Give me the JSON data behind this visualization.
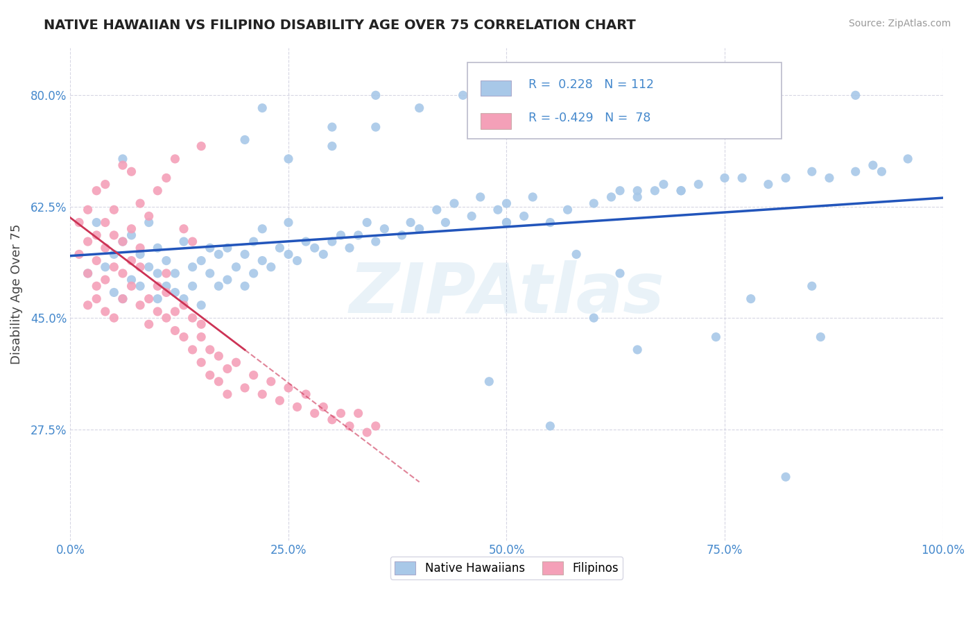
{
  "title": "NATIVE HAWAIIAN VS FILIPINO DISABILITY AGE OVER 75 CORRELATION CHART",
  "source": "Source: ZipAtlas.com",
  "ylabel": "Disability Age Over 75",
  "xlim": [
    0.0,
    1.0
  ],
  "ylim": [
    0.1,
    0.875
  ],
  "yticks": [
    0.275,
    0.45,
    0.625,
    0.8
  ],
  "ytick_labels": [
    "27.5%",
    "45.0%",
    "62.5%",
    "80.0%"
  ],
  "xticks": [
    0.0,
    0.25,
    0.5,
    0.75,
    1.0
  ],
  "xtick_labels": [
    "0.0%",
    "25.0%",
    "50.0%",
    "75.0%",
    "100.0%"
  ],
  "native_hawaiian_color": "#a8c8e8",
  "filipino_color": "#f4a0b8",
  "trend_nh_color": "#2255bb",
  "trend_fil_color": "#cc3355",
  "r_nh": 0.228,
  "n_nh": 112,
  "r_fil": -0.429,
  "n_fil": 78,
  "title_color": "#222222",
  "axis_color": "#4488cc",
  "watermark": "ZIPAtlas",
  "background_color": "#ffffff",
  "grid_color": "#ccccdd",
  "native_hawaiian_x": [
    0.02,
    0.04,
    0.05,
    0.05,
    0.06,
    0.06,
    0.07,
    0.07,
    0.08,
    0.08,
    0.09,
    0.09,
    0.1,
    0.1,
    0.1,
    0.11,
    0.11,
    0.12,
    0.12,
    0.13,
    0.13,
    0.14,
    0.14,
    0.15,
    0.15,
    0.16,
    0.16,
    0.17,
    0.17,
    0.18,
    0.18,
    0.19,
    0.2,
    0.2,
    0.21,
    0.21,
    0.22,
    0.22,
    0.23,
    0.24,
    0.25,
    0.25,
    0.26,
    0.27,
    0.28,
    0.29,
    0.3,
    0.31,
    0.32,
    0.33,
    0.34,
    0.35,
    0.36,
    0.38,
    0.39,
    0.4,
    0.42,
    0.43,
    0.44,
    0.46,
    0.47,
    0.49,
    0.5,
    0.5,
    0.52,
    0.53,
    0.55,
    0.57,
    0.6,
    0.62,
    0.63,
    0.65,
    0.67,
    0.68,
    0.7,
    0.72,
    0.75,
    0.77,
    0.8,
    0.82,
    0.85,
    0.87,
    0.9,
    0.92,
    0.3,
    0.35,
    0.4,
    0.45,
    0.48,
    0.55,
    0.58,
    0.6,
    0.63,
    0.65,
    0.7,
    0.74,
    0.78,
    0.82,
    0.86,
    0.9,
    0.93,
    0.96,
    0.5,
    0.65,
    0.75,
    0.85,
    0.2,
    0.22,
    0.25,
    0.3,
    0.35,
    0.03,
    0.06
  ],
  "native_hawaiian_y": [
    0.52,
    0.53,
    0.55,
    0.49,
    0.48,
    0.57,
    0.51,
    0.58,
    0.5,
    0.55,
    0.53,
    0.6,
    0.48,
    0.52,
    0.56,
    0.5,
    0.54,
    0.49,
    0.52,
    0.48,
    0.57,
    0.53,
    0.5,
    0.54,
    0.47,
    0.52,
    0.56,
    0.5,
    0.55,
    0.51,
    0.56,
    0.53,
    0.5,
    0.55,
    0.52,
    0.57,
    0.54,
    0.59,
    0.53,
    0.56,
    0.55,
    0.6,
    0.54,
    0.57,
    0.56,
    0.55,
    0.57,
    0.58,
    0.56,
    0.58,
    0.6,
    0.57,
    0.59,
    0.58,
    0.6,
    0.59,
    0.62,
    0.6,
    0.63,
    0.61,
    0.64,
    0.62,
    0.6,
    0.63,
    0.61,
    0.64,
    0.6,
    0.62,
    0.63,
    0.64,
    0.65,
    0.64,
    0.65,
    0.66,
    0.65,
    0.66,
    0.67,
    0.67,
    0.66,
    0.67,
    0.68,
    0.67,
    0.68,
    0.69,
    0.72,
    0.75,
    0.78,
    0.8,
    0.35,
    0.28,
    0.55,
    0.45,
    0.52,
    0.4,
    0.65,
    0.42,
    0.48,
    0.2,
    0.42,
    0.8,
    0.68,
    0.7,
    0.6,
    0.65,
    0.75,
    0.5,
    0.73,
    0.78,
    0.7,
    0.75,
    0.8,
    0.6,
    0.7
  ],
  "filipino_x": [
    0.01,
    0.01,
    0.02,
    0.02,
    0.02,
    0.02,
    0.03,
    0.03,
    0.03,
    0.03,
    0.03,
    0.04,
    0.04,
    0.04,
    0.04,
    0.05,
    0.05,
    0.05,
    0.06,
    0.06,
    0.06,
    0.07,
    0.07,
    0.07,
    0.08,
    0.08,
    0.08,
    0.09,
    0.09,
    0.1,
    0.1,
    0.11,
    0.11,
    0.11,
    0.12,
    0.12,
    0.13,
    0.13,
    0.14,
    0.14,
    0.15,
    0.15,
    0.15,
    0.16,
    0.16,
    0.17,
    0.17,
    0.18,
    0.18,
    0.19,
    0.2,
    0.21,
    0.22,
    0.23,
    0.24,
    0.25,
    0.26,
    0.27,
    0.28,
    0.29,
    0.3,
    0.31,
    0.32,
    0.33,
    0.34,
    0.35,
    0.1,
    0.11,
    0.12,
    0.15,
    0.07,
    0.08,
    0.04,
    0.05,
    0.06,
    0.09,
    0.13,
    0.14
  ],
  "filipino_y": [
    0.55,
    0.6,
    0.52,
    0.57,
    0.62,
    0.47,
    0.5,
    0.54,
    0.58,
    0.48,
    0.65,
    0.51,
    0.56,
    0.46,
    0.6,
    0.53,
    0.58,
    0.45,
    0.52,
    0.57,
    0.48,
    0.54,
    0.5,
    0.59,
    0.47,
    0.53,
    0.56,
    0.48,
    0.44,
    0.5,
    0.46,
    0.49,
    0.45,
    0.52,
    0.46,
    0.43,
    0.47,
    0.42,
    0.45,
    0.4,
    0.44,
    0.38,
    0.42,
    0.4,
    0.36,
    0.39,
    0.35,
    0.37,
    0.33,
    0.38,
    0.34,
    0.36,
    0.33,
    0.35,
    0.32,
    0.34,
    0.31,
    0.33,
    0.3,
    0.31,
    0.29,
    0.3,
    0.28,
    0.3,
    0.27,
    0.28,
    0.65,
    0.67,
    0.7,
    0.72,
    0.68,
    0.63,
    0.66,
    0.62,
    0.69,
    0.61,
    0.59,
    0.57
  ]
}
